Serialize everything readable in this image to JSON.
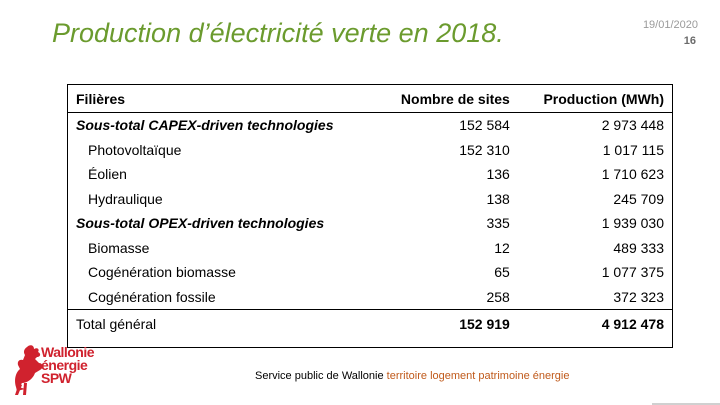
{
  "slide": {
    "title": "Production d’électricité verte en 2018.",
    "date": "19/01/2020",
    "page_number": "16"
  },
  "table": {
    "headers": [
      "Filières",
      "Nombre de sites",
      "Production (MWh)"
    ],
    "rows": [
      {
        "label": "Sous-total CAPEX-driven technologies",
        "sites": "152 584",
        "production": "2 973 448"
      },
      {
        "label": "Photovoltaïque",
        "sites": "152 310",
        "production": "1 017 115"
      },
      {
        "label": "Éolien",
        "sites": "136",
        "production": "1 710 623"
      },
      {
        "label": "Hydraulique",
        "sites": "138",
        "production": "245 709"
      },
      {
        "label": "Sous-total OPEX-driven technologies",
        "sites": "335",
        "production": "1 939 030"
      },
      {
        "label": "Biomasse",
        "sites": "12",
        "production": "489 333"
      },
      {
        "label": "Cogénération biomasse",
        "sites": "65",
        "production": "1 077 375"
      },
      {
        "label": "Cogénération fossile",
        "sites": "258",
        "production": "372 323"
      }
    ],
    "total": {
      "label": "Total général",
      "sites": "152 919",
      "production": "4 912 478"
    }
  },
  "logo": {
    "line1": "Wallonie",
    "line2": "énergie",
    "line3": "SPW",
    "brand_color": "#d0222e"
  },
  "footer": {
    "organization": "Service public de Wallonie",
    "tagline": "territoire logement patrimoine énergie"
  },
  "colors": {
    "title": "#6b9b2e",
    "tagline": "#c05a1b"
  }
}
